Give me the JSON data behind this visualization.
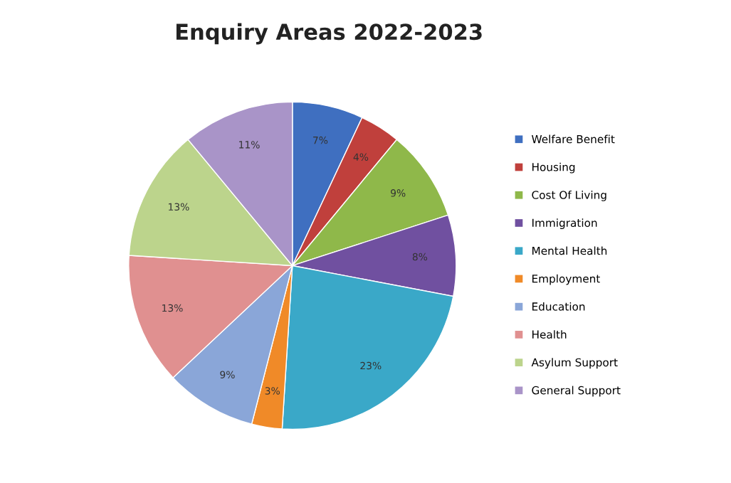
{
  "chart_data": {
    "type": "pie",
    "title": "Enquiry Areas 2022-2023",
    "categories": [
      "Welfare Benefit",
      "Housing",
      "Cost Of Living",
      "Immigration",
      "Mental Health",
      "Employment",
      "Education",
      "Health",
      "Asylum Support",
      "General Support"
    ],
    "values": [
      7,
      4,
      9,
      8,
      23,
      3,
      9,
      13,
      13,
      11
    ],
    "value_labels": [
      "7%",
      "4%",
      "9%",
      "8%",
      "23%",
      "3%",
      "9%",
      "13%",
      "13%",
      "11%"
    ],
    "colors": [
      "#3f6fc0",
      "#c0403c",
      "#8fb84a",
      "#7050a0",
      "#3aa8c8",
      "#f08a28",
      "#8aa6d8",
      "#e09090",
      "#bcd48c",
      "#a994c8"
    ],
    "legend": "right"
  }
}
